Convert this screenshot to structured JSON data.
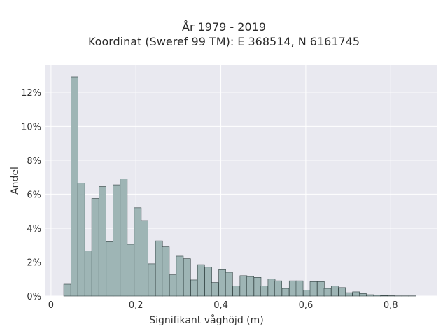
{
  "chart_data": {
    "type": "bar",
    "title": "År 1979 - 2019",
    "subtitle": "Koordinat (Sweref 99 TM): E 368514, N 6161745",
    "xlabel": "Signifikant våghöjd (m)",
    "ylabel": "Andel",
    "x_ticks": [
      "0",
      "0,2",
      "0,4",
      "0,6",
      "0,8"
    ],
    "x_tick_values": [
      0,
      0.2,
      0.4,
      0.6,
      0.8
    ],
    "y_ticks": [
      "0%",
      "2%",
      "4%",
      "6%",
      "8%",
      "10%",
      "12%"
    ],
    "y_tick_values": [
      0,
      2,
      4,
      6,
      8,
      10,
      12
    ],
    "xlim": [
      -0.013,
      0.91
    ],
    "ylim": [
      0,
      13.6
    ],
    "bin_width": 0.0166,
    "bin_starts": [
      0.03,
      0.047,
      0.063,
      0.08,
      0.096,
      0.113,
      0.13,
      0.146,
      0.163,
      0.179,
      0.196,
      0.212,
      0.229,
      0.246,
      0.262,
      0.279,
      0.295,
      0.312,
      0.329,
      0.345,
      0.362,
      0.378,
      0.395,
      0.411,
      0.428,
      0.445,
      0.461,
      0.478,
      0.494,
      0.511,
      0.527,
      0.544,
      0.561,
      0.577,
      0.594,
      0.61,
      0.627,
      0.643,
      0.66,
      0.677,
      0.693,
      0.71,
      0.726,
      0.743,
      0.76,
      0.776,
      0.793,
      0.809,
      0.826,
      0.842
    ],
    "values": [
      0.7,
      12.9,
      6.65,
      2.65,
      5.75,
      6.45,
      3.2,
      6.55,
      6.9,
      3.05,
      5.2,
      4.45,
      1.9,
      3.25,
      2.9,
      1.25,
      2.35,
      2.2,
      0.95,
      1.85,
      1.7,
      0.8,
      1.55,
      1.4,
      0.6,
      1.2,
      1.15,
      1.1,
      0.6,
      1.0,
      0.9,
      0.45,
      0.9,
      0.9,
      0.35,
      0.85,
      0.85,
      0.45,
      0.6,
      0.5,
      0.2,
      0.25,
      0.15,
      0.08,
      0.05,
      0.03,
      0.02,
      0.01,
      0.01,
      0.01
    ],
    "bar_color": "#9eb5b5",
    "bar_edge_color": "#2f3f3f",
    "plot_background": "#e9e9f0",
    "grid": true
  }
}
